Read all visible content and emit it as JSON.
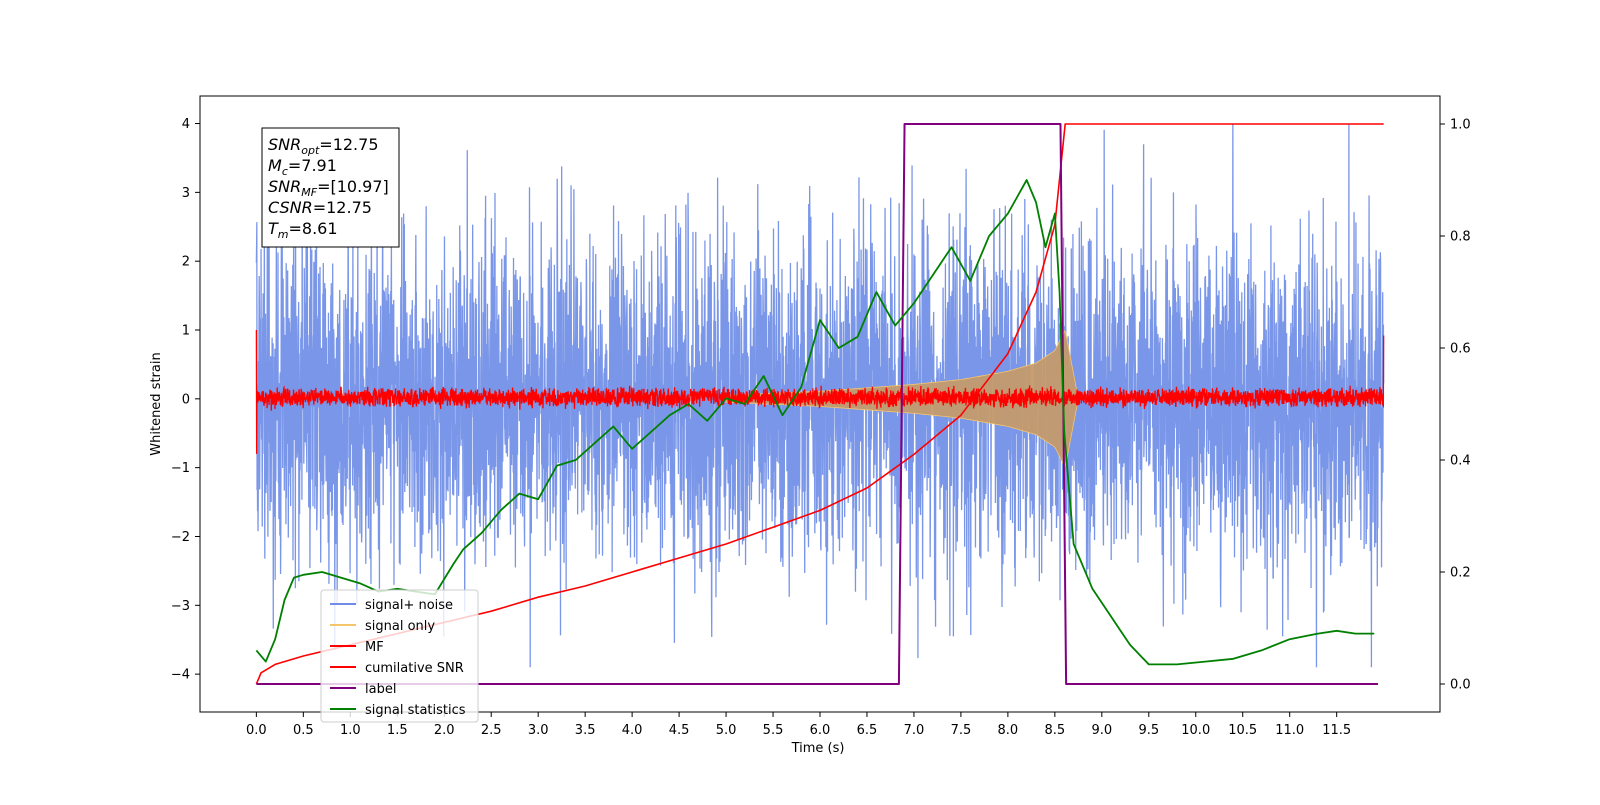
{
  "chart_data": {
    "type": "line",
    "xlabel": "Time (s)",
    "ylabel": "Whitened strain",
    "xlim": [
      -0.6,
      12.6
    ],
    "ylim": [
      -4.55,
      4.4
    ],
    "y2lim": [
      -0.05,
      1.05
    ],
    "x_ticks": [
      "0.0",
      "0.5",
      "1.0",
      "1.5",
      "2.0",
      "2.5",
      "3.0",
      "3.5",
      "4.0",
      "4.5",
      "5.0",
      "5.5",
      "6.0",
      "6.5",
      "7.0",
      "7.5",
      "8.0",
      "8.5",
      "9.0",
      "9.5",
      "10.0",
      "10.5",
      "11.0",
      "11.5"
    ],
    "y_ticks": [
      "4",
      "3",
      "2",
      "1",
      "0",
      "−1",
      "−2",
      "−3",
      "−4"
    ],
    "y2_ticks": [
      "1.0",
      "0.8",
      "0.6",
      "0.4",
      "0.2",
      "0.0"
    ],
    "annotation": {
      "lines": [
        {
          "sym": "SNR",
          "sub": "opt",
          "val": "=12.75"
        },
        {
          "sym": "M",
          "sub": "c",
          "val": "=7.91"
        },
        {
          "sym": "SNR",
          "sub": "MF",
          "val": "=[10.97]"
        },
        {
          "sym": "CSNR",
          "sub": "",
          "val": "=12.75"
        },
        {
          "sym": "T",
          "sub": "m",
          "val": "=8.61"
        }
      ]
    },
    "legend": {
      "placement": "lower-left",
      "entries": [
        {
          "label": "signal+ noise",
          "color": "#6f8de6"
        },
        {
          "label": "signal only",
          "color": "#f5c56b"
        },
        {
          "label": "MF",
          "color": "#ff0000"
        },
        {
          "label": "cumilative SNR",
          "color": "#ff0000"
        },
        {
          "label": "label",
          "color": "#800080"
        },
        {
          "label": "signal statistics",
          "color": "#008000"
        }
      ]
    },
    "series": [
      {
        "name": "signal+ noise",
        "axis": "left",
        "color": "#6f8de6",
        "kind": "noise",
        "t_start": 0.0,
        "t_end": 12.0,
        "dt": 0.0025,
        "typical_envelope": 2.2,
        "peak_range": [
          -3.9,
          4.0
        ]
      },
      {
        "name": "signal only",
        "axis": "left",
        "color": "#c49a6c",
        "kind": "chirp-envelope",
        "t_start": 5.0,
        "t_end": 8.61,
        "envelope": [
          [
            5.0,
            0.05
          ],
          [
            6.0,
            0.11
          ],
          [
            7.0,
            0.21
          ],
          [
            7.5,
            0.28
          ],
          [
            8.0,
            0.4
          ],
          [
            8.3,
            0.52
          ],
          [
            8.5,
            0.7
          ],
          [
            8.61,
            1.0
          ]
        ],
        "ringdown_end": 8.75
      },
      {
        "name": "MF",
        "axis": "left",
        "color": "#ff0000",
        "kind": "band",
        "t_start": 0.0,
        "t_end": 12.0,
        "band": [
          -0.13,
          0.22
        ],
        "edges": {
          "start": [
            1.0,
            -0.8
          ],
          "end": [
            -0.1,
            0.92
          ]
        }
      },
      {
        "name": "cumilative SNR",
        "axis": "right",
        "color": "#ff0000",
        "x": [
          0.0,
          0.05,
          0.2,
          0.5,
          1.0,
          1.5,
          2.0,
          2.5,
          3.0,
          3.5,
          4.0,
          4.5,
          5.0,
          5.5,
          6.0,
          6.5,
          7.0,
          7.5,
          8.0,
          8.3,
          8.5,
          8.61,
          8.62,
          12.0
        ],
        "y": [
          0.0,
          0.02,
          0.035,
          0.05,
          0.07,
          0.09,
          0.11,
          0.13,
          0.155,
          0.175,
          0.2,
          0.225,
          0.25,
          0.28,
          0.31,
          0.35,
          0.41,
          0.48,
          0.59,
          0.7,
          0.82,
          1.0,
          1.0,
          1.0
        ]
      },
      {
        "name": "label",
        "axis": "right",
        "color": "#800080",
        "x": [
          0.0,
          6.84,
          6.9,
          8.56,
          8.62,
          11.94
        ],
        "y": [
          0.0,
          0.0,
          1.0,
          1.0,
          0.0,
          0.0
        ]
      },
      {
        "name": "signal statistics",
        "axis": "right",
        "color": "#008000",
        "x": [
          0.0,
          0.1,
          0.2,
          0.3,
          0.4,
          0.5,
          0.7,
          0.9,
          1.1,
          1.3,
          1.5,
          1.7,
          1.9,
          2.1,
          2.2,
          2.4,
          2.6,
          2.8,
          3.0,
          3.2,
          3.4,
          3.6,
          3.8,
          4.0,
          4.2,
          4.4,
          4.6,
          4.8,
          5.0,
          5.2,
          5.4,
          5.6,
          5.8,
          6.0,
          6.2,
          6.4,
          6.6,
          6.8,
          7.0,
          7.2,
          7.4,
          7.6,
          7.8,
          8.0,
          8.2,
          8.3,
          8.4,
          8.5,
          8.55,
          8.6,
          8.7,
          8.9,
          9.1,
          9.3,
          9.5,
          9.8,
          10.1,
          10.4,
          10.7,
          11.0,
          11.3,
          11.5,
          11.7,
          11.9
        ],
        "y": [
          0.06,
          0.04,
          0.08,
          0.15,
          0.19,
          0.195,
          0.2,
          0.19,
          0.18,
          0.165,
          0.17,
          0.165,
          0.16,
          0.215,
          0.24,
          0.27,
          0.31,
          0.34,
          0.33,
          0.39,
          0.4,
          0.43,
          0.46,
          0.42,
          0.45,
          0.48,
          0.5,
          0.47,
          0.51,
          0.5,
          0.55,
          0.48,
          0.53,
          0.65,
          0.6,
          0.62,
          0.7,
          0.64,
          0.68,
          0.73,
          0.78,
          0.72,
          0.8,
          0.84,
          0.9,
          0.86,
          0.78,
          0.84,
          0.7,
          0.45,
          0.25,
          0.17,
          0.12,
          0.07,
          0.035,
          0.035,
          0.04,
          0.045,
          0.06,
          0.08,
          0.09,
          0.095,
          0.09,
          0.09
        ]
      }
    ]
  }
}
